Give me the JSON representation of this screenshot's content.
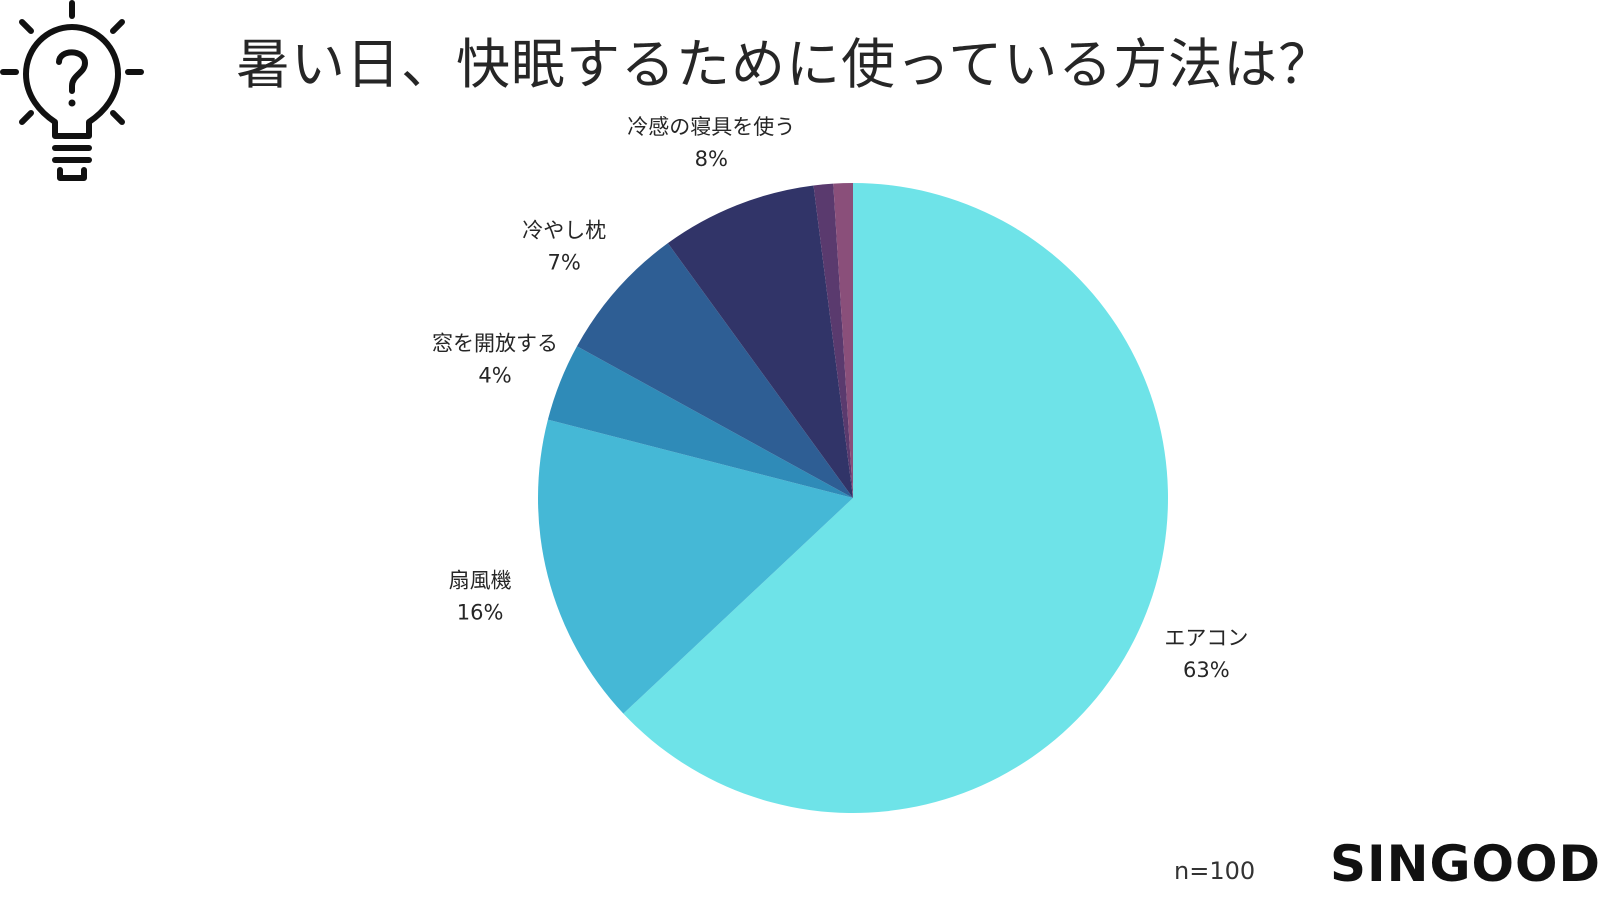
{
  "chart_data": {
    "type": "pie",
    "title": "暑い日、快眠するために使っている方法は？",
    "slices": [
      {
        "label": "エアコン",
        "value": 63,
        "value_label": "63%",
        "color": "#6ee3e8"
      },
      {
        "label": "扇風機",
        "value": 16,
        "value_label": "16%",
        "color": "#45b8d6"
      },
      {
        "label": "窓を開放する",
        "value": 4,
        "value_label": "4%",
        "color": "#2f8bb8"
      },
      {
        "label": "冷やし枕",
        "value": 7,
        "value_label": "7%",
        "color": "#2e5e94"
      },
      {
        "label": "冷感の寝具を使う",
        "value": 8,
        "value_label": "8%",
        "color": "#313468"
      },
      {
        "label": "",
        "value": 1,
        "value_label": "",
        "color": "#5a3a6e"
      },
      {
        "label": "",
        "value": 1,
        "value_label": "",
        "color": "#8a4f7a"
      }
    ],
    "sample_size": "n=100"
  },
  "brand": "SINGOOD",
  "icons": {
    "header": "lightbulb-question-icon"
  }
}
